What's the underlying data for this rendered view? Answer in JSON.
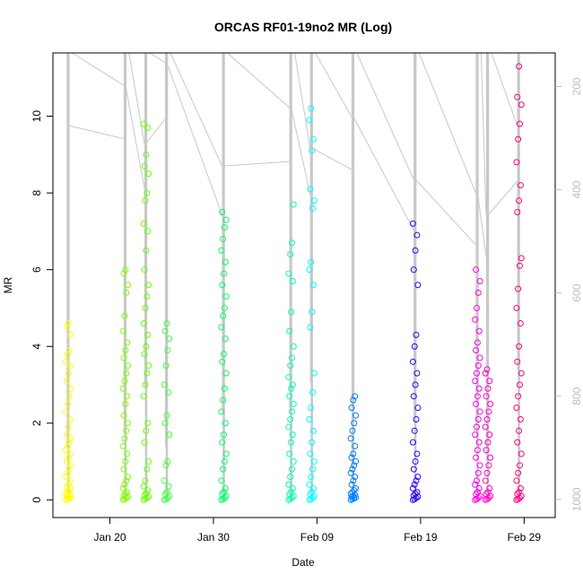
{
  "chart_data": {
    "type": "scatter",
    "title": "ORCAS RF01-19no2 MR (Log)",
    "xlabel": "Date",
    "ylabel": "MR",
    "xlim": [
      "2016-01-14T12:00",
      "2016-03-03"
    ],
    "ylim": [
      -0.46,
      11.65
    ],
    "x_tick_labels": [
      "Jan 20",
      "Jan 30",
      "Feb 09",
      "Feb 19",
      "Feb 29"
    ],
    "x_tick_dates": [
      "2016-01-20",
      "2016-01-30",
      "2016-02-09",
      "2016-02-19",
      "2016-02-29"
    ],
    "y_tick_labels": [
      "0",
      "2",
      "4",
      "6",
      "8",
      "10"
    ],
    "y_ticks": [
      0,
      2,
      4,
      6,
      8,
      10
    ],
    "secondary_axis": {
      "label": "",
      "reversed": true,
      "tick_labels": [
        "200",
        "400",
        "600",
        "800",
        "1000"
      ],
      "ticks": [
        200,
        400,
        600,
        800,
        1000
      ],
      "range": [
        1035,
        135
      ],
      "color": "#bdbdbd"
    },
    "colors": {
      "axis": "#000000",
      "pressure_trace": "#c8c8c8"
    },
    "series": [
      {
        "date": "2016-01-16",
        "color": "#ffff00",
        "max_mr": 4.6,
        "points": [
          0.0,
          0.02,
          0.04,
          0.06,
          0.08,
          0.1,
          0.13,
          0.16,
          0.2,
          0.25,
          0.3,
          0.35,
          0.4,
          0.5,
          0.6,
          0.7,
          0.8,
          0.9,
          1.0,
          1.1,
          1.2,
          1.3,
          1.4,
          1.5,
          1.6,
          1.7,
          1.9,
          2.1,
          2.3,
          2.5,
          2.7,
          2.9,
          3.1,
          3.3,
          3.5,
          3.6,
          3.8,
          3.9,
          4.3,
          4.5,
          4.6
        ]
      },
      {
        "date": "2016-01-21T12:00",
        "color": "#7fff00",
        "max_mr": 6.0,
        "points": [
          0.0,
          0.02,
          0.05,
          0.08,
          0.1,
          0.15,
          0.2,
          0.3,
          0.4,
          0.5,
          0.6,
          0.8,
          1.0,
          1.2,
          1.4,
          1.6,
          1.8,
          2.0,
          2.2,
          2.5,
          2.7,
          2.9,
          3.1,
          3.3,
          3.5,
          3.7,
          3.9,
          4.1,
          4.4,
          4.8,
          5.4,
          5.6,
          5.9,
          6.0
        ]
      },
      {
        "date": "2016-01-23T12:00",
        "color": "#66ff00",
        "max_mr": 9.8,
        "points": [
          0.0,
          0.03,
          0.05,
          0.08,
          0.12,
          0.17,
          0.25,
          0.35,
          0.5,
          0.8,
          1.0,
          1.5,
          1.8,
          2.0,
          2.7,
          3.0,
          3.3,
          3.5,
          3.8,
          4.0,
          4.3,
          4.6,
          5.0,
          5.3,
          5.6,
          6.0,
          6.5,
          7.0,
          7.2,
          7.8,
          8.0,
          8.5,
          8.7,
          9.0,
          9.7,
          9.8
        ]
      },
      {
        "date": "2016-01-25T12:00",
        "color": "#3cff3c",
        "max_mr": 4.6,
        "points": [
          0.0,
          0.02,
          0.05,
          0.1,
          0.15,
          0.2,
          0.35,
          0.5,
          0.9,
          1.0,
          1.7,
          2.0,
          2.2,
          2.8,
          3.0,
          3.5,
          3.9,
          4.2,
          4.4,
          4.6
        ]
      },
      {
        "date": "2016-01-31",
        "color": "#00ff66",
        "max_mr": 7.5,
        "points": [
          0.0,
          0.02,
          0.05,
          0.1,
          0.15,
          0.2,
          0.3,
          0.5,
          0.8,
          1.0,
          1.2,
          1.5,
          1.7,
          2.0,
          2.3,
          2.6,
          2.9,
          3.3,
          3.6,
          3.8,
          4.2,
          4.5,
          4.8,
          5.0,
          5.3,
          5.6,
          5.9,
          6.2,
          6.5,
          6.8,
          7.1,
          7.3,
          7.5
        ]
      },
      {
        "date": "2016-02-06T12:00",
        "color": "#00ffb0",
        "max_mr": 7.7,
        "points": [
          0.0,
          0.02,
          0.05,
          0.1,
          0.15,
          0.2,
          0.3,
          0.4,
          0.6,
          0.8,
          1.0,
          1.2,
          1.5,
          1.7,
          1.9,
          2.1,
          2.3,
          2.5,
          2.7,
          2.9,
          3.0,
          3.2,
          3.5,
          3.7,
          4.0,
          4.4,
          4.9,
          5.7,
          5.9,
          6.4,
          6.7,
          7.7
        ]
      },
      {
        "date": "2016-02-08T12:00",
        "color": "#00ffff",
        "max_mr": 10.2,
        "points": [
          0.0,
          0.02,
          0.05,
          0.1,
          0.15,
          0.2,
          0.3,
          0.4,
          0.6,
          0.8,
          1.0,
          1.2,
          1.5,
          1.8,
          2.1,
          2.4,
          2.8,
          3.3,
          4.5,
          4.9,
          5.6,
          6.0,
          6.2,
          7.6,
          7.8,
          8.1,
          9.1,
          9.4,
          9.9,
          10.2
        ]
      },
      {
        "date": "2016-02-12T12:00",
        "color": "#0080ff",
        "max_mr": 2.7,
        "points": [
          0.0,
          0.02,
          0.04,
          0.06,
          0.08,
          0.1,
          0.13,
          0.16,
          0.2,
          0.25,
          0.3,
          0.4,
          0.5,
          0.6,
          0.7,
          0.8,
          0.9,
          1.0,
          1.1,
          1.2,
          1.4,
          1.6,
          1.8,
          2.0,
          2.2,
          2.4,
          2.6,
          2.7
        ]
      },
      {
        "date": "2016-02-18T12:00",
        "color": "#3300ff",
        "max_mr": 7.2,
        "points": [
          0.0,
          0.02,
          0.05,
          0.08,
          0.12,
          0.16,
          0.2,
          0.3,
          0.4,
          0.5,
          0.6,
          0.8,
          1.0,
          1.2,
          1.5,
          1.8,
          2.1,
          2.4,
          2.7,
          3.0,
          3.3,
          3.6,
          4.0,
          4.3,
          5.6,
          6.0,
          6.5,
          6.9,
          7.2
        ]
      },
      {
        "date": "2016-02-24T12:00",
        "color": "#ff00ee",
        "max_mr": 6.0,
        "points": [
          0.0,
          0.02,
          0.05,
          0.1,
          0.15,
          0.2,
          0.3,
          0.4,
          0.5,
          0.7,
          0.9,
          1.1,
          1.3,
          1.5,
          1.7,
          1.9,
          2.1,
          2.3,
          2.5,
          2.7,
          2.9,
          3.1,
          3.3,
          3.5,
          3.7,
          3.9,
          4.1,
          4.4,
          4.7,
          5.0,
          5.4,
          5.7,
          6.0
        ]
      },
      {
        "date": "2016-02-25T12:00",
        "color": "#ff00c8",
        "max_mr": 3.4,
        "points": [
          0.0,
          0.02,
          0.05,
          0.1,
          0.15,
          0.2,
          0.3,
          0.5,
          0.7,
          0.9,
          1.1,
          1.3,
          1.5,
          1.7,
          1.9,
          2.1,
          2.3,
          2.5,
          2.7,
          2.9,
          3.1,
          3.3,
          3.4
        ]
      },
      {
        "date": "2016-02-28T12:00",
        "color": "#ff0080",
        "max_mr": 11.3,
        "points": [
          0.0,
          0.02,
          0.05,
          0.1,
          0.15,
          0.2,
          0.3,
          0.5,
          0.7,
          0.9,
          1.2,
          1.5,
          1.8,
          2.1,
          2.4,
          2.7,
          3.0,
          3.3,
          3.6,
          4.0,
          4.6,
          5.0,
          5.5,
          6.1,
          6.3,
          7.5,
          7.8,
          8.2,
          8.8,
          9.4,
          9.8,
          10.3,
          10.5,
          11.3
        ]
      }
    ]
  }
}
